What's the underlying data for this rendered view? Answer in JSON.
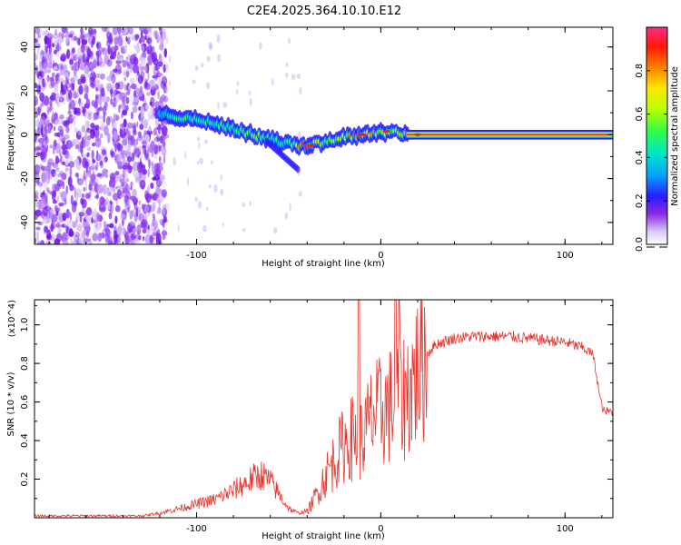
{
  "figure_title": "C2E4.2025.364.10.10.E12",
  "chart_data": [
    {
      "type": "heatmap",
      "title": "C2E4.2025.364.10.10.E12",
      "xlabel": "Height of straight line (km)",
      "ylabel": "Frequency (Hz)",
      "xlim": [
        -188,
        126
      ],
      "ylim": [
        -50,
        49
      ],
      "xticks": [
        -100,
        0,
        100
      ],
      "xtick_labels": [
        "-100",
        "0",
        "100"
      ],
      "yticks": [
        40,
        20,
        0,
        -20,
        -40
      ],
      "ytick_labels": [
        "40",
        "20",
        "0",
        "-20",
        "-40"
      ],
      "colorbar": {
        "label": "Normalized spectral amplitude",
        "range": [
          0,
          1
        ],
        "ticks": [
          0.0,
          0.2,
          0.4,
          0.6,
          0.8
        ],
        "tick_labels": [
          "0.0",
          "0.2",
          "0.4",
          "0.6",
          "0.8"
        ]
      },
      "ridge": {
        "description": "frequency of the main spectral ridge (Hz) vs height (km)",
        "x": [
          -120,
          -110,
          -100,
          -90,
          -80,
          -70,
          -60,
          -50,
          -45,
          -40,
          -30,
          -20,
          -10,
          0,
          10,
          20,
          40,
          60,
          80,
          100,
          126
        ],
        "y": [
          10,
          8,
          7,
          5,
          3,
          0,
          -2,
          -4,
          -5,
          -5,
          -3,
          -1,
          0,
          1,
          1,
          0,
          0,
          0,
          0,
          0,
          0
        ],
        "amplitude": [
          0.35,
          0.45,
          0.5,
          0.45,
          0.45,
          0.5,
          0.5,
          0.4,
          0.75,
          0.9,
          0.55,
          0.6,
          0.85,
          0.6,
          0.55,
          0.95,
          0.95,
          0.95,
          0.95,
          0.95,
          0.95
        ]
      }
    },
    {
      "type": "line",
      "xlabel": "Height of straight line (km)",
      "ylabel": "SNR (10 * v/v)",
      "y_multiplier": "(x10^4)",
      "xlim": [
        -188,
        126
      ],
      "ylim": [
        0,
        1.13
      ],
      "xticks": [
        -100,
        0,
        100
      ],
      "xtick_labels": [
        "-100",
        "0",
        "100"
      ],
      "yticks": [
        0.2,
        0.4,
        0.6,
        0.8,
        1.0
      ],
      "ytick_labels": [
        "0.2",
        "0.4",
        "0.6",
        "0.8",
        "1.0"
      ],
      "series": [
        {
          "name": "SNR",
          "color": "#e8332c",
          "x": [
            -188,
            -160,
            -130,
            -120,
            -110,
            -100,
            -90,
            -80,
            -70,
            -65,
            -60,
            -55,
            -50,
            -45,
            -40,
            -35,
            -30,
            -25,
            -20,
            -15,
            -10,
            -5,
            0,
            5,
            10,
            15,
            20,
            25,
            30,
            40,
            50,
            60,
            70,
            80,
            90,
            100,
            110,
            115,
            117,
            119,
            121,
            126
          ],
          "y": [
            0.01,
            0.01,
            0.01,
            0.02,
            0.04,
            0.06,
            0.08,
            0.12,
            0.17,
            0.19,
            0.16,
            0.1,
            0.04,
            0.02,
            0.03,
            0.12,
            0.22,
            0.3,
            0.38,
            0.42,
            0.4,
            0.52,
            0.55,
            0.58,
            0.6,
            0.66,
            0.76,
            0.85,
            0.9,
            0.93,
            0.94,
            0.94,
            0.94,
            0.93,
            0.92,
            0.91,
            0.88,
            0.85,
            0.75,
            0.62,
            0.55,
            0.55
          ],
          "spikes": [
            {
              "x": -12,
              "y": 1.13
            },
            {
              "x": 8,
              "y": 1.13
            },
            {
              "x": 10,
              "y": 1.13
            }
          ]
        }
      ]
    }
  ]
}
